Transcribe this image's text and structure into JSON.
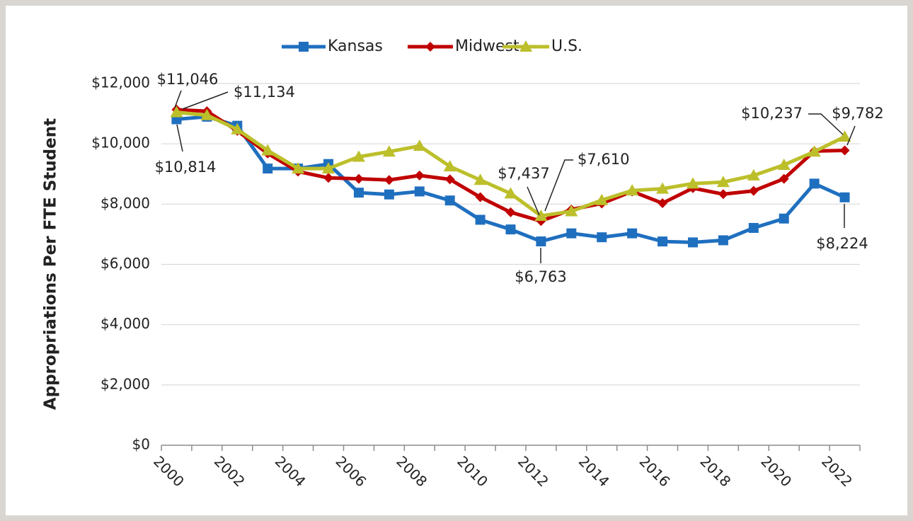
{
  "chart_data": {
    "type": "line",
    "y_label": "Appropriations Per FTE Student",
    "categories": [
      "2000",
      null,
      "2002",
      null,
      "2004",
      null,
      "2006",
      null,
      "2008",
      null,
      "2010",
      null,
      "2012",
      null,
      "2014",
      null,
      "2016",
      null,
      "2018",
      null,
      "2020",
      null,
      "2022"
    ],
    "ylim": [
      0,
      12000
    ],
    "yticks": [
      {
        "value": 0,
        "label": "$0"
      },
      {
        "value": 2000,
        "label": "$2,000"
      },
      {
        "value": 4000,
        "label": "$4,000"
      },
      {
        "value": 6000,
        "label": "$6,000"
      },
      {
        "value": 8000,
        "label": "$8,000"
      },
      {
        "value": 10000,
        "label": "$10,000"
      },
      {
        "value": 12000,
        "label": "$12,000"
      }
    ],
    "grid": true,
    "legend": "top",
    "series": [
      {
        "name": "Kansas",
        "color": "#1f6fbf",
        "marker": "square",
        "values": [
          10814,
          10900,
          10600,
          9180,
          9180,
          9330,
          8380,
          8320,
          8420,
          8120,
          7480,
          7160,
          6763,
          7030,
          6900,
          7030,
          6760,
          6730,
          6800,
          7210,
          7520,
          8680,
          8224
        ],
        "value_labels": [
          "$10,814",
          null,
          null,
          null,
          null,
          null,
          null,
          null,
          null,
          null,
          null,
          null,
          "$6,763",
          null,
          null,
          null,
          null,
          null,
          null,
          null,
          null,
          null,
          "$8,224"
        ]
      },
      {
        "name": "Midwest",
        "color": "#c00000",
        "marker": "diamond",
        "values": [
          11134,
          11080,
          10430,
          9680,
          9080,
          8870,
          8840,
          8800,
          8950,
          8820,
          8230,
          7730,
          7437,
          7820,
          8020,
          8420,
          8030,
          8530,
          8330,
          8440,
          8840,
          9760,
          9782
        ],
        "value_labels": [
          "$11,134",
          null,
          null,
          null,
          null,
          null,
          null,
          null,
          null,
          null,
          null,
          null,
          "$7,437",
          null,
          null,
          null,
          null,
          null,
          null,
          null,
          null,
          null,
          "$9,782"
        ]
      },
      {
        "name": "U.S.",
        "color": "#bcbf2a",
        "marker": "triangle",
        "values": [
          11046,
          10950,
          10480,
          9780,
          9180,
          9180,
          9570,
          9740,
          9930,
          9250,
          8800,
          8350,
          7610,
          7760,
          8130,
          8450,
          8510,
          8680,
          8730,
          8950,
          9300,
          9740,
          10237
        ],
        "value_labels": [
          "$11,046",
          null,
          null,
          null,
          null,
          null,
          null,
          null,
          null,
          null,
          null,
          null,
          "$7,610",
          null,
          null,
          null,
          null,
          null,
          null,
          null,
          null,
          null,
          "$10,237"
        ]
      }
    ]
  }
}
